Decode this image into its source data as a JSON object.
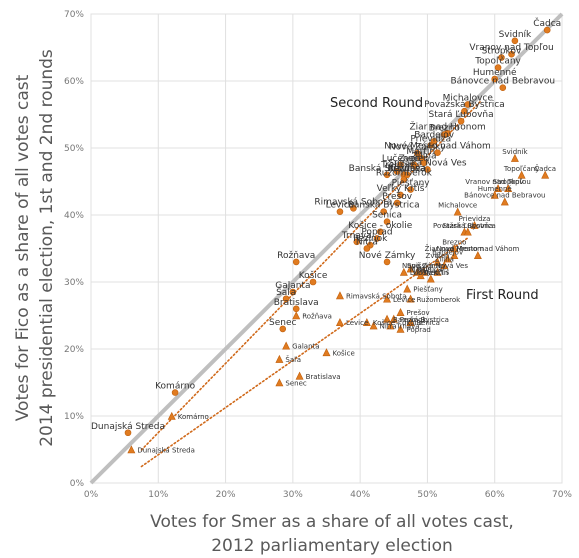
{
  "chart_data": {
    "type": "scatter",
    "xlabel_lines": [
      "Votes for Smer as a share of all votes cast,",
      "2012 parliamentary election"
    ],
    "ylabel_lines": [
      "Votes for Fico as a share of all votes cast",
      "2014 presidential election, 1st and 2nd rounds"
    ],
    "xlim": [
      0,
      70
    ],
    "ylim": [
      0,
      70
    ],
    "xticks": [
      "0%",
      "10%",
      "20%",
      "30%",
      "40%",
      "50%",
      "60%",
      "70%"
    ],
    "yticks": [
      "0%",
      "10%",
      "20%",
      "30%",
      "40%",
      "50%",
      "60%",
      "70%"
    ],
    "grid": true,
    "annotations": [
      {
        "text": "Second Round",
        "x": 35,
        "y": 56.5
      },
      {
        "text": "First Round",
        "x": 56,
        "y": 28
      }
    ],
    "colors": {
      "point": "#e07b20",
      "point_edge": "#c05f0c",
      "diagonal": "#bfbfbf",
      "trend": "#d0691a",
      "grid": "#e0e0e0"
    },
    "series": [
      {
        "name": "Second Round",
        "marker": "circle",
        "points": [
          {
            "label": "Čadca",
            "x": 67.8,
            "y": 67.6
          },
          {
            "label": "Svidník",
            "x": 63.0,
            "y": 66.0
          },
          {
            "label": "Vranov nad Topľou",
            "x": 62.5,
            "y": 64.0
          },
          {
            "label": "Stropkov",
            "x": 61.0,
            "y": 63.5
          },
          {
            "label": "Topoľčany",
            "x": 60.5,
            "y": 62.0
          },
          {
            "label": "Humenné",
            "x": 60.0,
            "y": 60.3
          },
          {
            "label": "Bánovce nad Bebravou",
            "x": 61.2,
            "y": 59.0
          },
          {
            "label": "Michalovce",
            "x": 56.0,
            "y": 56.5
          },
          {
            "label": "Považská Bystrica",
            "x": 55.5,
            "y": 55.5
          },
          {
            "label": "Stará Ľubovňa",
            "x": 55.0,
            "y": 54.0
          },
          {
            "label": "Žiar nad Hronom",
            "x": 53.0,
            "y": 52.2
          },
          {
            "label": "Brezno",
            "x": 52.5,
            "y": 52.0
          },
          {
            "label": "Bardejov",
            "x": 51.0,
            "y": 51.0
          },
          {
            "label": "Prievidza",
            "x": 50.5,
            "y": 50.4
          },
          {
            "label": "Nové Zámky",
            "x": 48.5,
            "y": 49.2
          },
          {
            "label": "Nové Mesto nad Váhom",
            "x": 51.5,
            "y": 49.3
          },
          {
            "label": "Martin",
            "x": 49.0,
            "y": 48.5
          },
          {
            "label": "Žilina",
            "x": 49.5,
            "y": 47.8
          },
          {
            "label": "Lučenec",
            "x": 46.0,
            "y": 47.5
          },
          {
            "label": "Zvolen",
            "x": 48.0,
            "y": 47.5
          },
          {
            "label": "Spišská Nová Ves",
            "x": 50.0,
            "y": 46.8
          },
          {
            "label": "Trenčín",
            "x": 45.5,
            "y": 46.5
          },
          {
            "label": "Revúca",
            "x": 46.5,
            "y": 46.0
          },
          {
            "label": "Rožňava",
            "x": 47.0,
            "y": 46.0
          },
          {
            "label": "Banská Štiavnica",
            "x": 44.0,
            "y": 46.0
          },
          {
            "label": "Ružomberok",
            "x": 46.5,
            "y": 45.3
          },
          {
            "label": "Piešťany",
            "x": 47.5,
            "y": 43.8
          },
          {
            "label": "Veľký Krtíš",
            "x": 46.0,
            "y": 43.0
          },
          {
            "label": "Prešov",
            "x": 45.5,
            "y": 41.8
          },
          {
            "label": "Rimavská Sobota",
            "x": 39.0,
            "y": 41.0
          },
          {
            "label": "Banská Bystrica",
            "x": 43.5,
            "y": 40.5
          },
          {
            "label": "Levice",
            "x": 37.0,
            "y": 40.5
          },
          {
            "label": "Senica",
            "x": 44.0,
            "y": 39.0
          },
          {
            "label": "Košice - okolie",
            "x": 43.0,
            "y": 37.5
          },
          {
            "label": "Poprad",
            "x": 42.5,
            "y": 36.5
          },
          {
            "label": "Trnava",
            "x": 39.5,
            "y": 36.0
          },
          {
            "label": "Pezinok",
            "x": 41.5,
            "y": 35.5
          },
          {
            "label": "Nitra",
            "x": 41.0,
            "y": 35.0
          },
          {
            "label": "Nové Zámky",
            "x": 44.0,
            "y": 33.0
          },
          {
            "label": "Rožňava",
            "x": 30.5,
            "y": 33.0
          },
          {
            "label": "Košice",
            "x": 33.0,
            "y": 30.0
          },
          {
            "label": "Galanta",
            "x": 30.0,
            "y": 28.5
          },
          {
            "label": "Šaľa",
            "x": 29.0,
            "y": 27.5
          },
          {
            "label": "Bratislava",
            "x": 30.5,
            "y": 26.0
          },
          {
            "label": "Senec",
            "x": 28.5,
            "y": 23.0
          },
          {
            "label": "Komárno",
            "x": 12.5,
            "y": 13.5
          },
          {
            "label": "Dunajská Streda",
            "x": 5.5,
            "y": 7.5
          }
        ]
      },
      {
        "name": "First Round",
        "marker": "triangle",
        "points": [
          {
            "label": "Svidník",
            "x": 63.0,
            "y": 48.5
          },
          {
            "label": "Topoľčany",
            "x": 64.0,
            "y": 46.0
          },
          {
            "label": "Čadca",
            "x": 67.5,
            "y": 46.0
          },
          {
            "label": "Vranov nad Topľou",
            "x": 60.5,
            "y": 44.0
          },
          {
            "label": "Stropkov",
            "x": 62.0,
            "y": 44.0
          },
          {
            "label": "Humenné",
            "x": 60.0,
            "y": 43.0
          },
          {
            "label": "Bánovce nad Bebravou",
            "x": 61.5,
            "y": 42.0
          },
          {
            "label": "Michalovce",
            "x": 54.5,
            "y": 40.5
          },
          {
            "label": "Prievidza",
            "x": 57.0,
            "y": 38.5
          },
          {
            "label": "Považská Bystrica",
            "x": 55.5,
            "y": 37.5
          },
          {
            "label": "Stará Ľubovňa",
            "x": 56.0,
            "y": 37.5
          },
          {
            "label": "Nové Mesto nad Váhom",
            "x": 57.5,
            "y": 34.0
          },
          {
            "label": "Brezno",
            "x": 54.0,
            "y": 35.0
          },
          {
            "label": "Bardejov",
            "x": 53.0,
            "y": 33.5
          },
          {
            "label": "Žiar nad Hronom",
            "x": 54.0,
            "y": 34.0
          },
          {
            "label": "Zvolen",
            "x": 51.5,
            "y": 33.0
          },
          {
            "label": "Žilina",
            "x": 52.5,
            "y": 32.5
          },
          {
            "label": "Spišská Nová Ves",
            "x": 51.5,
            "y": 31.5
          },
          {
            "label": "Nové Zámky",
            "x": 49.5,
            "y": 31.5
          },
          {
            "label": "Lučenec",
            "x": 46.5,
            "y": 31.5
          },
          {
            "label": "Revúca",
            "x": 47.5,
            "y": 32.0
          },
          {
            "label": "Trenčín",
            "x": 48.5,
            "y": 31.5
          },
          {
            "label": "Martin",
            "x": 49.0,
            "y": 31.0
          },
          {
            "label": "Veľký Krtíš",
            "x": 50.5,
            "y": 30.5
          },
          {
            "label": "Piešťany",
            "x": 47.0,
            "y": 29.0
          },
          {
            "label": "Ružomberok",
            "x": 47.5,
            "y": 27.5
          },
          {
            "label": "Rimavská Sobota",
            "x": 37.0,
            "y": 28.0
          },
          {
            "label": "Levice",
            "x": 44.0,
            "y": 27.5
          },
          {
            "label": "Prešov",
            "x": 46.0,
            "y": 25.5
          },
          {
            "label": "Banská Bystrica",
            "x": 44.0,
            "y": 24.5
          },
          {
            "label": "Pezinok",
            "x": 45.0,
            "y": 24.5
          },
          {
            "label": "Senica",
            "x": 47.5,
            "y": 24.0
          },
          {
            "label": "Rožňava",
            "x": 30.5,
            "y": 25.0
          },
          {
            "label": "Levice",
            "x": 37.0,
            "y": 24.0
          },
          {
            "label": "Košice - okolie",
            "x": 41.0,
            "y": 24.0
          },
          {
            "label": "Poprad",
            "x": 46.0,
            "y": 23.0
          },
          {
            "label": "Nitra",
            "x": 42.0,
            "y": 23.5
          },
          {
            "label": "Trnava",
            "x": 44.5,
            "y": 23.5
          },
          {
            "label": "Galanta",
            "x": 29.0,
            "y": 20.5
          },
          {
            "label": "Košice",
            "x": 35.0,
            "y": 19.5
          },
          {
            "label": "Šaľa",
            "x": 28.0,
            "y": 18.5
          },
          {
            "label": "Bratislava",
            "x": 31.0,
            "y": 16.0
          },
          {
            "label": "Senec",
            "x": 28.0,
            "y": 15.0
          },
          {
            "label": "Komárno",
            "x": 12.0,
            "y": 10.0
          },
          {
            "label": "Dunajská Streda",
            "x": 6.0,
            "y": 5.0
          }
        ]
      }
    ]
  }
}
